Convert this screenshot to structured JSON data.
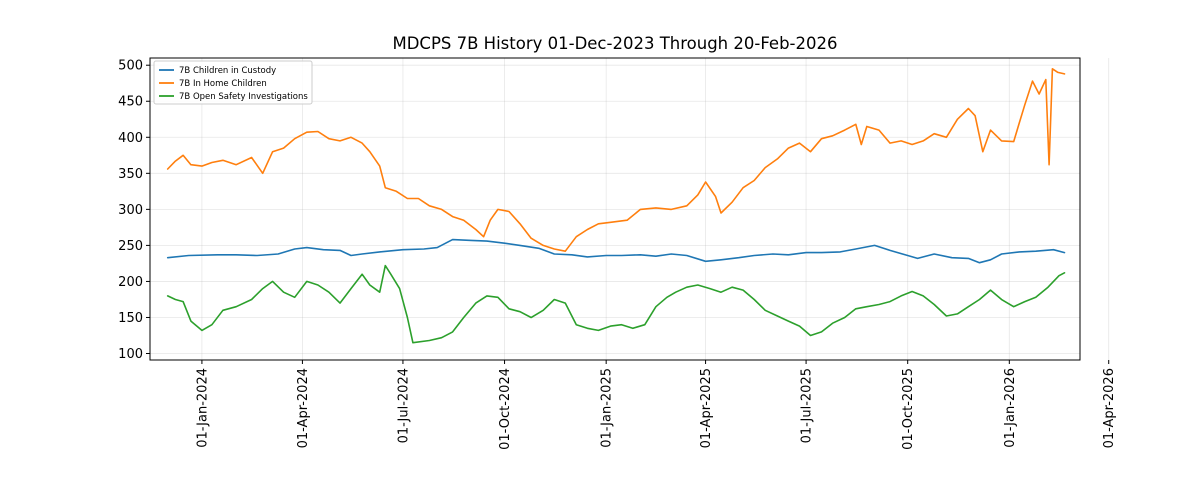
{
  "chart_data": {
    "type": "line",
    "title": "MDCPS 7B History 01-Dec-2023 Through 20-Feb-2026",
    "xlabel": "",
    "ylabel": "",
    "x_range": [
      "2023-11-15",
      "2026-03-06"
    ],
    "ylim": [
      91,
      510
    ],
    "grid": true,
    "legend_position": "top-left",
    "x_ticks": [
      {
        "date": "2024-01-01",
        "label": "01-Jan-2024"
      },
      {
        "date": "2024-04-01",
        "label": "01-Apr-2024"
      },
      {
        "date": "2024-07-01",
        "label": "01-Jul-2024"
      },
      {
        "date": "2024-10-01",
        "label": "01-Oct-2024"
      },
      {
        "date": "2025-01-01",
        "label": "01-Jan-2025"
      },
      {
        "date": "2025-04-01",
        "label": "01-Apr-2025"
      },
      {
        "date": "2025-07-01",
        "label": "01-Jul-2025"
      },
      {
        "date": "2025-10-01",
        "label": "01-Oct-2025"
      },
      {
        "date": "2026-01-01",
        "label": "01-Jan-2026"
      },
      {
        "date": "2026-04-01",
        "label": "01-Apr-2026"
      }
    ],
    "y_ticks": [
      100,
      150,
      200,
      250,
      300,
      350,
      400,
      450,
      500
    ],
    "series": [
      {
        "name": "7B Children in Custody",
        "color": "#1f77b4",
        "points": [
          [
            "2023-12-01",
            233
          ],
          [
            "2023-12-20",
            236
          ],
          [
            "2024-01-15",
            237
          ],
          [
            "2024-02-01",
            237
          ],
          [
            "2024-02-20",
            236
          ],
          [
            "2024-03-10",
            238
          ],
          [
            "2024-03-25",
            245
          ],
          [
            "2024-04-05",
            247
          ],
          [
            "2024-04-20",
            244
          ],
          [
            "2024-05-05",
            243
          ],
          [
            "2024-05-15",
            236
          ],
          [
            "2024-05-25",
            238
          ],
          [
            "2024-06-10",
            241
          ],
          [
            "2024-07-01",
            244
          ],
          [
            "2024-07-20",
            245
          ],
          [
            "2024-08-01",
            247
          ],
          [
            "2024-08-15",
            258
          ],
          [
            "2024-09-01",
            257
          ],
          [
            "2024-09-15",
            256
          ],
          [
            "2024-10-01",
            253
          ],
          [
            "2024-10-15",
            250
          ],
          [
            "2024-11-01",
            246
          ],
          [
            "2024-11-15",
            238
          ],
          [
            "2024-12-01",
            237
          ],
          [
            "2024-12-15",
            234
          ],
          [
            "2025-01-01",
            236
          ],
          [
            "2025-01-15",
            236
          ],
          [
            "2025-02-01",
            237
          ],
          [
            "2025-02-15",
            235
          ],
          [
            "2025-03-01",
            238
          ],
          [
            "2025-03-15",
            236
          ],
          [
            "2025-04-01",
            228
          ],
          [
            "2025-04-15",
            230
          ],
          [
            "2025-05-01",
            233
          ],
          [
            "2025-05-15",
            236
          ],
          [
            "2025-06-01",
            238
          ],
          [
            "2025-06-15",
            237
          ],
          [
            "2025-07-01",
            240
          ],
          [
            "2025-07-15",
            240
          ],
          [
            "2025-08-01",
            241
          ],
          [
            "2025-08-15",
            245
          ],
          [
            "2025-09-01",
            250
          ],
          [
            "2025-09-15",
            243
          ],
          [
            "2025-10-01",
            236
          ],
          [
            "2025-10-10",
            232
          ],
          [
            "2025-10-25",
            238
          ],
          [
            "2025-11-10",
            233
          ],
          [
            "2025-11-25",
            232
          ],
          [
            "2025-12-05",
            226
          ],
          [
            "2025-12-15",
            230
          ],
          [
            "2025-12-25",
            238
          ],
          [
            "2026-01-10",
            241
          ],
          [
            "2026-01-25",
            242
          ],
          [
            "2026-02-10",
            244
          ],
          [
            "2026-02-20",
            240
          ]
        ]
      },
      {
        "name": "7B In Home Children",
        "color": "#ff7f0e",
        "points": [
          [
            "2023-12-01",
            356
          ],
          [
            "2023-12-08",
            367
          ],
          [
            "2023-12-15",
            375
          ],
          [
            "2023-12-22",
            362
          ],
          [
            "2024-01-01",
            360
          ],
          [
            "2024-01-10",
            365
          ],
          [
            "2024-01-20",
            368
          ],
          [
            "2024-02-01",
            362
          ],
          [
            "2024-02-15",
            372
          ],
          [
            "2024-02-25",
            350
          ],
          [
            "2024-03-05",
            380
          ],
          [
            "2024-03-15",
            385
          ],
          [
            "2024-03-25",
            398
          ],
          [
            "2024-04-05",
            407
          ],
          [
            "2024-04-15",
            408
          ],
          [
            "2024-04-25",
            398
          ],
          [
            "2024-05-05",
            395
          ],
          [
            "2024-05-15",
            400
          ],
          [
            "2024-05-25",
            392
          ],
          [
            "2024-06-01",
            380
          ],
          [
            "2024-06-10",
            360
          ],
          [
            "2024-06-15",
            330
          ],
          [
            "2024-06-25",
            325
          ],
          [
            "2024-07-05",
            315
          ],
          [
            "2024-07-15",
            315
          ],
          [
            "2024-07-25",
            305
          ],
          [
            "2024-08-05",
            300
          ],
          [
            "2024-08-15",
            290
          ],
          [
            "2024-08-25",
            285
          ],
          [
            "2024-09-05",
            272
          ],
          [
            "2024-09-12",
            262
          ],
          [
            "2024-09-18",
            285
          ],
          [
            "2024-09-25",
            300
          ],
          [
            "2024-10-05",
            297
          ],
          [
            "2024-10-15",
            280
          ],
          [
            "2024-10-25",
            260
          ],
          [
            "2024-11-05",
            250
          ],
          [
            "2024-11-15",
            245
          ],
          [
            "2024-11-25",
            242
          ],
          [
            "2024-12-05",
            262
          ],
          [
            "2024-12-15",
            272
          ],
          [
            "2024-12-25",
            280
          ],
          [
            "2025-01-05",
            282
          ],
          [
            "2025-01-20",
            285
          ],
          [
            "2025-02-01",
            300
          ],
          [
            "2025-02-15",
            302
          ],
          [
            "2025-03-01",
            300
          ],
          [
            "2025-03-15",
            305
          ],
          [
            "2025-03-25",
            320
          ],
          [
            "2025-04-01",
            338
          ],
          [
            "2025-04-10",
            318
          ],
          [
            "2025-04-15",
            295
          ],
          [
            "2025-04-25",
            310
          ],
          [
            "2025-05-05",
            330
          ],
          [
            "2025-05-15",
            340
          ],
          [
            "2025-05-25",
            358
          ],
          [
            "2025-06-05",
            370
          ],
          [
            "2025-06-15",
            385
          ],
          [
            "2025-06-25",
            392
          ],
          [
            "2025-07-05",
            380
          ],
          [
            "2025-07-15",
            398
          ],
          [
            "2025-07-25",
            402
          ],
          [
            "2025-08-05",
            410
          ],
          [
            "2025-08-15",
            418
          ],
          [
            "2025-08-20",
            390
          ],
          [
            "2025-08-25",
            415
          ],
          [
            "2025-09-05",
            410
          ],
          [
            "2025-09-15",
            392
          ],
          [
            "2025-09-25",
            395
          ],
          [
            "2025-10-05",
            390
          ],
          [
            "2025-10-15",
            395
          ],
          [
            "2025-10-25",
            405
          ],
          [
            "2025-11-05",
            400
          ],
          [
            "2025-11-15",
            425
          ],
          [
            "2025-11-25",
            440
          ],
          [
            "2025-12-01",
            430
          ],
          [
            "2025-12-08",
            380
          ],
          [
            "2025-12-15",
            410
          ],
          [
            "2025-12-25",
            395
          ],
          [
            "2026-01-05",
            394
          ],
          [
            "2026-01-10",
            420
          ],
          [
            "2026-01-15",
            445
          ],
          [
            "2026-01-22",
            478
          ],
          [
            "2026-01-28",
            460
          ],
          [
            "2026-02-03",
            480
          ],
          [
            "2026-02-06",
            362
          ],
          [
            "2026-02-09",
            495
          ],
          [
            "2026-02-14",
            490
          ],
          [
            "2026-02-20",
            488
          ]
        ]
      },
      {
        "name": "7B Open Safety Investigations",
        "color": "#2ca02c",
        "points": [
          [
            "2023-12-01",
            180
          ],
          [
            "2023-12-08",
            175
          ],
          [
            "2023-12-15",
            172
          ],
          [
            "2023-12-22",
            145
          ],
          [
            "2024-01-01",
            132
          ],
          [
            "2024-01-10",
            140
          ],
          [
            "2024-01-20",
            160
          ],
          [
            "2024-02-01",
            165
          ],
          [
            "2024-02-15",
            175
          ],
          [
            "2024-02-25",
            190
          ],
          [
            "2024-03-05",
            200
          ],
          [
            "2024-03-15",
            185
          ],
          [
            "2024-03-25",
            178
          ],
          [
            "2024-04-05",
            200
          ],
          [
            "2024-04-15",
            195
          ],
          [
            "2024-04-25",
            185
          ],
          [
            "2024-05-05",
            170
          ],
          [
            "2024-05-15",
            190
          ],
          [
            "2024-05-25",
            210
          ],
          [
            "2024-06-01",
            195
          ],
          [
            "2024-06-10",
            185
          ],
          [
            "2024-06-15",
            222
          ],
          [
            "2024-06-20",
            210
          ],
          [
            "2024-06-28",
            190
          ],
          [
            "2024-07-05",
            150
          ],
          [
            "2024-07-10",
            115
          ],
          [
            "2024-07-25",
            118
          ],
          [
            "2024-08-05",
            122
          ],
          [
            "2024-08-15",
            130
          ],
          [
            "2024-08-25",
            150
          ],
          [
            "2024-09-05",
            170
          ],
          [
            "2024-09-15",
            180
          ],
          [
            "2024-09-25",
            178
          ],
          [
            "2024-10-05",
            162
          ],
          [
            "2024-10-15",
            158
          ],
          [
            "2024-10-25",
            150
          ],
          [
            "2024-11-05",
            160
          ],
          [
            "2024-11-15",
            175
          ],
          [
            "2024-11-25",
            170
          ],
          [
            "2024-12-05",
            140
          ],
          [
            "2024-12-15",
            135
          ],
          [
            "2024-12-25",
            132
          ],
          [
            "2025-01-05",
            138
          ],
          [
            "2025-01-15",
            140
          ],
          [
            "2025-01-25",
            135
          ],
          [
            "2025-02-05",
            140
          ],
          [
            "2025-02-15",
            165
          ],
          [
            "2025-02-25",
            178
          ],
          [
            "2025-03-05",
            185
          ],
          [
            "2025-03-15",
            192
          ],
          [
            "2025-03-25",
            195
          ],
          [
            "2025-04-05",
            190
          ],
          [
            "2025-04-15",
            185
          ],
          [
            "2025-04-25",
            192
          ],
          [
            "2025-05-05",
            188
          ],
          [
            "2025-05-15",
            175
          ],
          [
            "2025-05-25",
            160
          ],
          [
            "2025-06-05",
            152
          ],
          [
            "2025-06-15",
            145
          ],
          [
            "2025-06-25",
            138
          ],
          [
            "2025-07-05",
            125
          ],
          [
            "2025-07-15",
            130
          ],
          [
            "2025-07-25",
            142
          ],
          [
            "2025-08-05",
            150
          ],
          [
            "2025-08-15",
            162
          ],
          [
            "2025-08-25",
            165
          ],
          [
            "2025-09-05",
            168
          ],
          [
            "2025-09-15",
            172
          ],
          [
            "2025-09-25",
            180
          ],
          [
            "2025-10-05",
            186
          ],
          [
            "2025-10-15",
            180
          ],
          [
            "2025-10-25",
            168
          ],
          [
            "2025-11-05",
            152
          ],
          [
            "2025-11-15",
            155
          ],
          [
            "2025-11-25",
            165
          ],
          [
            "2025-12-05",
            175
          ],
          [
            "2025-12-15",
            188
          ],
          [
            "2025-12-25",
            175
          ],
          [
            "2026-01-05",
            165
          ],
          [
            "2026-01-15",
            172
          ],
          [
            "2026-01-25",
            178
          ],
          [
            "2026-02-05",
            192
          ],
          [
            "2026-02-15",
            208
          ],
          [
            "2026-02-20",
            212
          ]
        ]
      }
    ]
  }
}
